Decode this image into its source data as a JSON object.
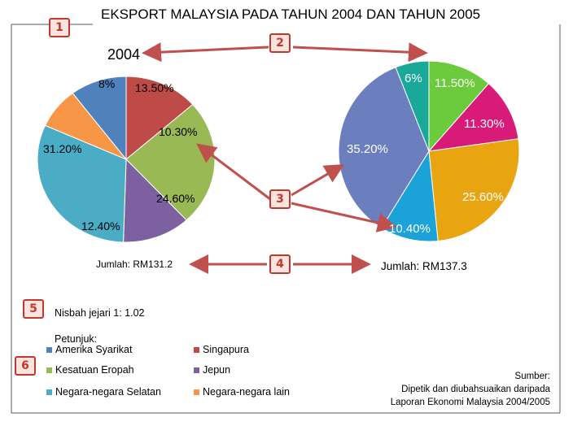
{
  "title": "EKSPORT MALAYSIA PADA TAHUN 2004 DAN TAHUN 2005",
  "badges": [
    "1",
    "2",
    "3",
    "4",
    "5",
    "6"
  ],
  "chart_data": [
    {
      "type": "pie",
      "title": "2004",
      "total_label": "Jumlah: RM131.2",
      "slices": [
        {
          "name": "Singapura",
          "label": "13.50%",
          "value": 13.5,
          "color": "#be4b48"
        },
        {
          "name": "Kesatuan Eropah",
          "label": "24.60%",
          "value": 24.6,
          "color": "#98b954"
        },
        {
          "name": "Jepun",
          "label": "12.40%",
          "value": 12.4,
          "color": "#7d60a0"
        },
        {
          "name": "Negara-negara Selatan",
          "label": "31.20%",
          "value": 31.2,
          "color": "#4bacc6"
        },
        {
          "name": "Negara-negara lain",
          "label": "8%",
          "value": 8.0,
          "color": "#f79646"
        },
        {
          "name": "Amerika Syarikat",
          "label": "10.30%",
          "value": 10.3,
          "color": "#4f81bd"
        }
      ]
    },
    {
      "type": "pie",
      "title": "",
      "total_label": "Jumlah: RM137.3",
      "slices": [
        {
          "name": "slice-green",
          "label": "11.50%",
          "value": 11.5,
          "color": "#6ccb3c"
        },
        {
          "name": "slice-magenta",
          "label": "11.30%",
          "value": 11.3,
          "color": "#d81b78"
        },
        {
          "name": "slice-gold",
          "label": "25.60%",
          "value": 25.6,
          "color": "#e8a510"
        },
        {
          "name": "slice-cyan",
          "label": "10.40%",
          "value": 10.4,
          "color": "#1ba2d8"
        },
        {
          "name": "slice-slate",
          "label": "35.20%",
          "value": 35.2,
          "color": "#6b7fbe"
        },
        {
          "name": "slice-teal",
          "label": "6%",
          "value": 6.0,
          "color": "#1aa89a"
        }
      ]
    }
  ],
  "ratio_text": "Nisbah jejari 1: 1.02",
  "legend": {
    "title": "Petunjuk:",
    "items": [
      {
        "label": "Amerika Syarikat",
        "color": "#4f81bd"
      },
      {
        "label": "Singapura",
        "color": "#be4b48"
      },
      {
        "label": "Kesatuan Eropah",
        "color": "#98b954"
      },
      {
        "label": "Jepun",
        "color": "#7d60a0"
      },
      {
        "label": "Negara-negara Selatan",
        "color": "#4bacc6"
      },
      {
        "label": "Negara-negara lain",
        "color": "#f79646"
      }
    ]
  },
  "source": {
    "line1": "Sumber:",
    "line2": "Dipetik dan diubahsuaikan daripada",
    "line3": "Laporan Ekonomi Malaysia 2004/2005"
  },
  "colors": {
    "arrow": "#c0504d",
    "frame": "#595959"
  }
}
